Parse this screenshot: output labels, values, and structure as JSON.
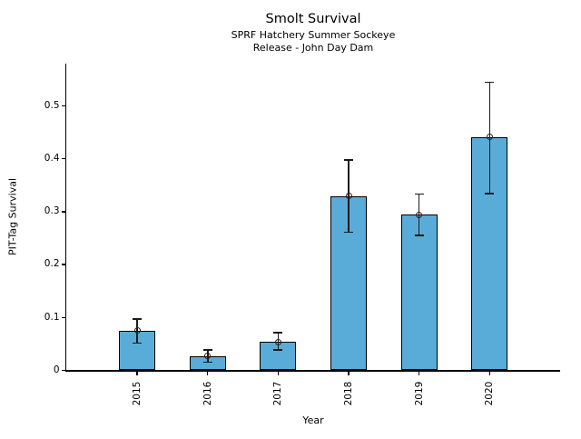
{
  "chart_data": {
    "type": "bar",
    "title": "Smolt Survival",
    "subtitle1": "SPRF Hatchery Summer Sockeye",
    "subtitle2": "Release - John Day Dam",
    "xlabel": "Year",
    "ylabel": "PIT-Tag Survival",
    "categories": [
      "2015",
      "2016",
      "2017",
      "2018",
      "2019",
      "2020"
    ],
    "values": [
      0.075,
      0.027,
      0.053,
      0.329,
      0.294,
      0.441
    ],
    "error_low": [
      0.051,
      0.015,
      0.038,
      0.261,
      0.255,
      0.334
    ],
    "error_high": [
      0.097,
      0.038,
      0.071,
      0.398,
      0.333,
      0.545
    ],
    "ylim": [
      0,
      0.58
    ],
    "yticks": [
      0,
      0.1,
      0.2,
      0.3,
      0.4,
      0.5
    ],
    "ytick_labels": [
      "0",
      "0.1",
      "0.2",
      "0.3",
      "0.4",
      "0.5"
    ],
    "bar_color": "#5AACD8",
    "bar_edge_color": "#000000",
    "error_color": "#1a1a1a",
    "marker": "open-circle",
    "grid": false,
    "legend_position": "none"
  }
}
